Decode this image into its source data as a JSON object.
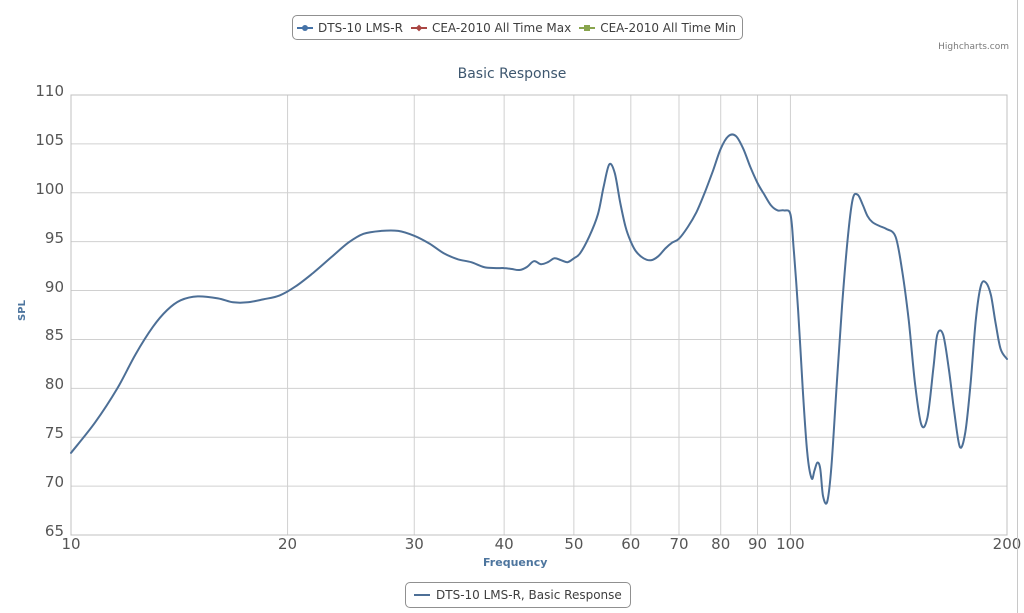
{
  "top_legend": {
    "items": [
      {
        "label": "DTS-10 LMS-R",
        "color": "#4572a7"
      },
      {
        "label": "CEA-2010 All Time Max",
        "color": "#aa4643"
      },
      {
        "label": "CEA-2010 All Time Min",
        "color": "#89a54e"
      }
    ]
  },
  "credits": "Highcharts.com",
  "bottom_legend": {
    "label": "DTS-10 LMS-R, Basic Response",
    "color": "#4d6f96"
  },
  "chart_data": {
    "type": "line",
    "title": "Basic Response",
    "xlabel": "Frequency",
    "ylabel": "SPL",
    "x_scale": "log",
    "xlim": [
      10,
      200
    ],
    "ylim": [
      65,
      110
    ],
    "grid": true,
    "legend_position": "top",
    "x_ticks": [
      10,
      20,
      30,
      40,
      50,
      60,
      70,
      80,
      90,
      100,
      200
    ],
    "x_tick_labels": [
      "10",
      "20",
      "30",
      "40",
      "50",
      "60",
      "70",
      "80",
      "90",
      "100",
      "200"
    ],
    "y_ticks": [
      65,
      70,
      75,
      80,
      85,
      90,
      95,
      100,
      105,
      110
    ],
    "y_tick_labels": [
      "65",
      "70",
      "75",
      "80",
      "85",
      "90",
      "95",
      "100",
      "105",
      "110"
    ],
    "series": [
      {
        "name": "DTS-10 LMS-R, Basic Response",
        "color": "#4d6f96",
        "x": [
          10,
          10.8,
          11.6,
          12.3,
          13,
          13.6,
          14.2,
          15,
          16,
          16.8,
          17.6,
          18.5,
          19.5,
          20.5,
          21.7,
          23,
          24.3,
          25.5,
          27,
          28.5,
          30,
          31.5,
          33,
          34.5,
          36,
          37.5,
          39,
          40,
          41,
          42,
          43,
          44,
          45,
          46,
          47,
          48,
          49,
          50,
          51,
          52.5,
          54,
          55,
          56,
          57,
          58,
          59,
          60,
          61,
          62.5,
          64,
          65.5,
          67,
          68.5,
          70,
          72,
          74,
          76,
          78,
          80,
          82,
          84,
          86,
          88,
          90,
          92,
          94,
          96,
          98,
          100,
          101,
          102.5,
          104,
          105.5,
          107,
          108,
          109,
          110,
          111,
          112.5,
          114,
          116,
          118,
          120,
          122,
          124,
          126,
          128,
          130,
          133,
          136,
          140,
          143,
          146,
          149,
          152,
          155,
          158,
          160,
          163,
          166,
          169,
          172,
          175,
          178,
          181,
          184,
          187,
          190,
          193,
          196,
          200
        ],
        "y": [
          73.4,
          76.5,
          80.0,
          83.5,
          86.3,
          88.0,
          89.0,
          89.4,
          89.2,
          88.8,
          88.8,
          89.1,
          89.5,
          90.4,
          91.8,
          93.4,
          94.9,
          95.8,
          96.1,
          96.1,
          95.6,
          94.8,
          93.8,
          93.2,
          92.9,
          92.4,
          92.3,
          92.3,
          92.2,
          92.1,
          92.4,
          93.0,
          92.7,
          92.9,
          93.3,
          93.1,
          92.9,
          93.3,
          93.8,
          95.5,
          97.8,
          100.6,
          102.9,
          102.0,
          99.0,
          96.5,
          95.0,
          94.0,
          93.3,
          93.1,
          93.5,
          94.3,
          94.9,
          95.3,
          96.5,
          98.0,
          100.0,
          102.2,
          104.5,
          105.8,
          105.8,
          104.5,
          102.6,
          101.0,
          99.8,
          98.7,
          98.2,
          98.2,
          97.8,
          94.5,
          88.0,
          80.0,
          73.5,
          70.8,
          71.6,
          72.4,
          71.8,
          69.0,
          68.4,
          72.0,
          80.5,
          88.5,
          95.0,
          99.3,
          99.8,
          98.8,
          97.6,
          97.0,
          96.6,
          96.3,
          95.5,
          92.0,
          87.0,
          80.5,
          76.3,
          77.0,
          82.0,
          85.5,
          85.5,
          82.0,
          77.5,
          74.0,
          75.5,
          80.5,
          87.0,
          90.5,
          90.8,
          89.5,
          86.5,
          84.0,
          83.0
        ]
      }
    ]
  }
}
